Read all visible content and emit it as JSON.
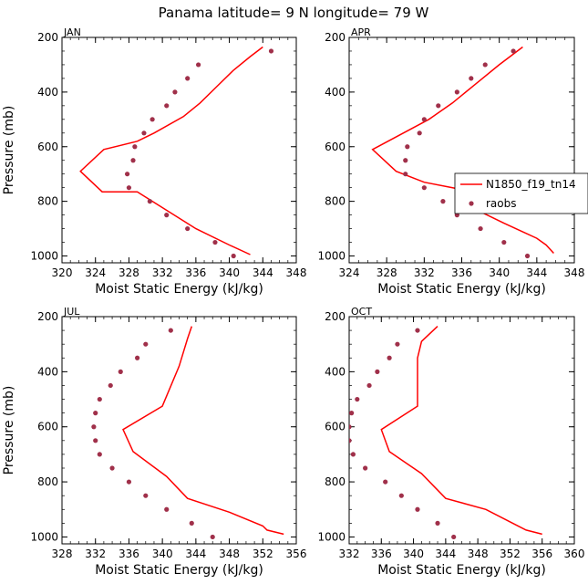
{
  "figure_title": "Panama  latitude= 9 N longitude= 79 W",
  "legend": {
    "model_label": "N1850_f19_tn14",
    "obs_label": "raobs",
    "placement": "right-middle of APR panel"
  },
  "colors": {
    "model": "#ff0000",
    "obs": "#a0304a",
    "axis": "#000000"
  },
  "chart_data": [
    {
      "type": "line",
      "panel": "JAN",
      "xlabel": "Moist Static Energy (kJ/kg)",
      "ylabel": "Pressure (mb)",
      "xlim": [
        320,
        348
      ],
      "xticks": [
        "320",
        "324",
        "328",
        "332",
        "336",
        "340",
        "344",
        "348"
      ],
      "ylim": [
        1025,
        200
      ],
      "yticks": [
        "200",
        "400",
        "600",
        "800",
        "1000"
      ],
      "series": [
        {
          "name": "N1850_f19_tn14",
          "style": "line",
          "points": [
            [
              344.0,
              235
            ],
            [
              342.5,
              270
            ],
            [
              340.5,
              320
            ],
            [
              338.5,
              380
            ],
            [
              336.5,
              440
            ],
            [
              334.5,
              490
            ],
            [
              331.0,
              550
            ],
            [
              329.0,
              580
            ],
            [
              325.0,
              610
            ],
            [
              322.2,
              690
            ],
            [
              324.8,
              765
            ],
            [
              329.0,
              765
            ],
            [
              336.0,
              900
            ],
            [
              340.0,
              960
            ],
            [
              342.5,
              995
            ]
          ]
        },
        {
          "name": "raobs",
          "style": "marker",
          "points": [
            [
              345.0,
              250
            ],
            [
              336.3,
              300
            ],
            [
              335.0,
              350
            ],
            [
              333.5,
              400
            ],
            [
              332.5,
              450
            ],
            [
              330.8,
              500
            ],
            [
              329.8,
              550
            ],
            [
              328.7,
              600
            ],
            [
              328.5,
              650
            ],
            [
              327.8,
              700
            ],
            [
              328.0,
              750
            ],
            [
              330.5,
              800
            ],
            [
              332.5,
              850
            ],
            [
              335.0,
              900
            ],
            [
              338.3,
              950
            ],
            [
              340.5,
              1000
            ]
          ]
        }
      ]
    },
    {
      "type": "line",
      "panel": "APR",
      "xlabel": "Moist Static Energy (kJ/kg)",
      "ylabel": "",
      "xlim": [
        324,
        348
      ],
      "xticks": [
        "324",
        "328",
        "332",
        "336",
        "340",
        "344",
        "348"
      ],
      "ylim": [
        1025,
        200
      ],
      "yticks": [
        "200",
        "400",
        "600",
        "800",
        "1000"
      ],
      "series": [
        {
          "name": "N1850_f19_tn14",
          "style": "line",
          "points": [
            [
              342.5,
              235
            ],
            [
              340.0,
              300
            ],
            [
              337.5,
              370
            ],
            [
              335.0,
              440
            ],
            [
              332.5,
              500
            ],
            [
              326.5,
              610
            ],
            [
              329.0,
              690
            ],
            [
              332.0,
              730
            ],
            [
              336.5,
              760
            ],
            [
              337.5,
              830
            ],
            [
              340.5,
              880
            ],
            [
              344.0,
              935
            ],
            [
              345.0,
              960
            ],
            [
              345.8,
              990
            ]
          ]
        },
        {
          "name": "raobs",
          "style": "marker",
          "points": [
            [
              341.5,
              250
            ],
            [
              338.5,
              300
            ],
            [
              337.0,
              350
            ],
            [
              335.5,
              400
            ],
            [
              333.5,
              450
            ],
            [
              332.0,
              500
            ],
            [
              331.5,
              550
            ],
            [
              330.2,
              600
            ],
            [
              330.0,
              650
            ],
            [
              330.0,
              700
            ],
            [
              332.0,
              750
            ],
            [
              334.0,
              800
            ],
            [
              337.0,
              810
            ],
            [
              335.5,
              850
            ],
            [
              338.0,
              900
            ],
            [
              340.5,
              950
            ],
            [
              343.0,
              1000
            ]
          ]
        }
      ]
    },
    {
      "type": "line",
      "panel": "JUL",
      "xlabel": "Moist Static Energy (kJ/kg)",
      "ylabel": "Pressure (mb)",
      "xlim": [
        328,
        356
      ],
      "xticks": [
        "328",
        "332",
        "336",
        "340",
        "344",
        "348",
        "352",
        "356"
      ],
      "ylim": [
        1025,
        200
      ],
      "yticks": [
        "200",
        "400",
        "600",
        "800",
        "1000"
      ],
      "series": [
        {
          "name": "N1850_f19_tn14",
          "style": "line",
          "points": [
            [
              343.5,
              235
            ],
            [
              343.0,
              280
            ],
            [
              342.0,
              380
            ],
            [
              340.0,
              525
            ],
            [
              335.3,
              610
            ],
            [
              336.5,
              690
            ],
            [
              340.5,
              780
            ],
            [
              343.0,
              860
            ],
            [
              348.0,
              910
            ],
            [
              352.0,
              960
            ],
            [
              352.5,
              975
            ],
            [
              354.5,
              990
            ]
          ]
        },
        {
          "name": "raobs",
          "style": "marker",
          "points": [
            [
              341.0,
              250
            ],
            [
              338.0,
              300
            ],
            [
              337.0,
              350
            ],
            [
              335.0,
              400
            ],
            [
              333.8,
              450
            ],
            [
              332.5,
              500
            ],
            [
              332.0,
              550
            ],
            [
              331.8,
              600
            ],
            [
              332.0,
              650
            ],
            [
              332.5,
              700
            ],
            [
              334.0,
              750
            ],
            [
              336.0,
              800
            ],
            [
              338.0,
              850
            ],
            [
              340.5,
              900
            ],
            [
              343.5,
              950
            ],
            [
              346.0,
              1000
            ]
          ]
        }
      ]
    },
    {
      "type": "line",
      "panel": "OCT",
      "xlabel": "Moist Static Energy (kJ/kg)",
      "ylabel": "",
      "xlim": [
        332,
        360
      ],
      "xticks": [
        "332",
        "336",
        "340",
        "344",
        "348",
        "352",
        "356",
        "360"
      ],
      "ylim": [
        1025,
        200
      ],
      "yticks": [
        "200",
        "400",
        "600",
        "800",
        "1000"
      ],
      "series": [
        {
          "name": "N1850_f19_tn14",
          "style": "line",
          "points": [
            [
              343.0,
              235
            ],
            [
              341.0,
              290
            ],
            [
              340.5,
              350
            ],
            [
              340.5,
              420
            ],
            [
              340.5,
              525
            ],
            [
              336.0,
              610
            ],
            [
              337.0,
              690
            ],
            [
              341.0,
              770
            ],
            [
              344.0,
              860
            ],
            [
              349.0,
              900
            ],
            [
              353.0,
              960
            ],
            [
              354.0,
              975
            ],
            [
              356.0,
              990
            ]
          ]
        },
        {
          "name": "raobs",
          "style": "marker",
          "points": [
            [
              340.5,
              250
            ],
            [
              338.0,
              300
            ],
            [
              337.0,
              350
            ],
            [
              335.5,
              400
            ],
            [
              334.5,
              450
            ],
            [
              333.0,
              500
            ],
            [
              332.3,
              550
            ],
            [
              332.0,
              600
            ],
            [
              332.0,
              650
            ],
            [
              332.5,
              700
            ],
            [
              334.0,
              750
            ],
            [
              336.5,
              800
            ],
            [
              338.5,
              850
            ],
            [
              340.5,
              900
            ],
            [
              343.0,
              950
            ],
            [
              345.0,
              1000
            ]
          ]
        }
      ]
    }
  ]
}
